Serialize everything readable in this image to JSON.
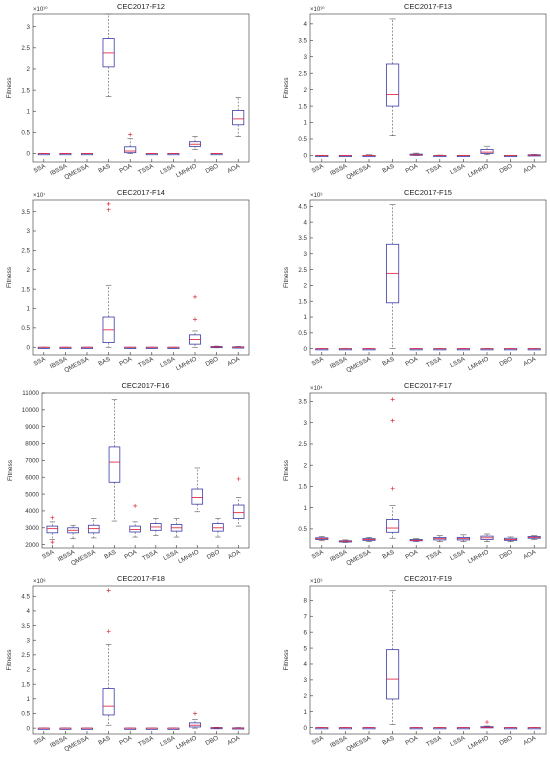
{
  "figure": {
    "ylabel": "Fitness",
    "categories": [
      "SSA",
      "IBSSA",
      "QMESSA",
      "BAS",
      "POA",
      "TSSA",
      "LSSA",
      "LMHHO",
      "DBO",
      "AOA"
    ],
    "colors": {
      "box": "#3a3aa8",
      "median": "#e0304a",
      "whisker": "#555555",
      "outlier": "#e0304a",
      "axis": "#333333"
    }
  },
  "chart_data": [
    {
      "type": "box",
      "title": "CEC2017-F12",
      "exponent": "×10¹⁰",
      "ylabel": "Fitness",
      "ylim": [
        -0.2,
        3.3
      ],
      "yticks": [
        0,
        0.5,
        1,
        1.5,
        2,
        2.5,
        3
      ],
      "ytick_labels": [
        "0",
        "0.5",
        "1",
        "1.5",
        "2",
        "2.5",
        "3"
      ],
      "categories": [
        "SSA",
        "IBSSA",
        "QMESSA",
        "BAS",
        "POA",
        "TSSA",
        "LSSA",
        "LMHHO",
        "DBO",
        "AOA"
      ],
      "boxes": [
        {
          "min": 0,
          "q1": 0,
          "median": 0,
          "q3": 0,
          "max": 0,
          "outliers": []
        },
        {
          "min": 0,
          "q1": 0,
          "median": 0,
          "q3": 0,
          "max": 0,
          "outliers": []
        },
        {
          "min": 0,
          "q1": 0,
          "median": 0,
          "q3": 0,
          "max": 0,
          "outliers": []
        },
        {
          "min": 1.35,
          "q1": 2.05,
          "median": 2.38,
          "q3": 2.72,
          "max": 3.3,
          "outliers": []
        },
        {
          "min": 0,
          "q1": 0.02,
          "median": 0.06,
          "q3": 0.16,
          "max": 0.35,
          "outliers": [
            0.45
          ]
        },
        {
          "min": 0,
          "q1": 0,
          "median": 0,
          "q3": 0,
          "max": 0,
          "outliers": []
        },
        {
          "min": 0,
          "q1": 0,
          "median": 0,
          "q3": 0,
          "max": 0,
          "outliers": []
        },
        {
          "min": 0.1,
          "q1": 0.17,
          "median": 0.22,
          "q3": 0.28,
          "max": 0.4,
          "outliers": []
        },
        {
          "min": 0,
          "q1": 0,
          "median": 0,
          "q3": 0,
          "max": 0,
          "outliers": []
        },
        {
          "min": 0.4,
          "q1": 0.68,
          "median": 0.82,
          "q3": 1.02,
          "max": 1.32,
          "outliers": []
        }
      ]
    },
    {
      "type": "box",
      "title": "CEC2017-F13",
      "exponent": "×10¹⁰",
      "ylabel": "Fitness",
      "ylim": [
        -0.2,
        4.3
      ],
      "yticks": [
        0,
        0.5,
        1,
        1.5,
        2,
        2.5,
        3,
        3.5,
        4
      ],
      "ytick_labels": [
        "0",
        "0.5",
        "1",
        "1.5",
        "2",
        "2.5",
        "3",
        "3.5",
        "4"
      ],
      "categories": [
        "SSA",
        "IBSSA",
        "QMESSA",
        "BAS",
        "POA",
        "TSSA",
        "LSSA",
        "LMHHO",
        "DBO",
        "AOA"
      ],
      "boxes": [
        {
          "min": 0,
          "q1": 0,
          "median": 0,
          "q3": 0,
          "max": 0,
          "outliers": []
        },
        {
          "min": 0,
          "q1": 0,
          "median": 0,
          "q3": 0,
          "max": 0,
          "outliers": []
        },
        {
          "min": 0,
          "q1": 0,
          "median": 0,
          "q3": 0,
          "max": 0.02,
          "outliers": []
        },
        {
          "min": 0.6,
          "q1": 1.5,
          "median": 1.85,
          "q3": 2.78,
          "max": 4.15,
          "outliers": []
        },
        {
          "min": 0,
          "q1": 0.01,
          "median": 0.02,
          "q3": 0.04,
          "max": 0.07,
          "outliers": []
        },
        {
          "min": 0,
          "q1": 0,
          "median": 0,
          "q3": 0,
          "max": 0.01,
          "outliers": []
        },
        {
          "min": 0,
          "q1": 0,
          "median": 0,
          "q3": 0,
          "max": 0,
          "outliers": []
        },
        {
          "min": 0.02,
          "q1": 0.06,
          "median": 0.1,
          "q3": 0.18,
          "max": 0.28,
          "outliers": []
        },
        {
          "min": 0,
          "q1": 0,
          "median": 0,
          "q3": 0,
          "max": 0,
          "outliers": []
        },
        {
          "min": 0,
          "q1": 0,
          "median": 0.01,
          "q3": 0.02,
          "max": 0.03,
          "outliers": []
        }
      ]
    },
    {
      "type": "box",
      "title": "CEC2017-F14",
      "exponent": "×10⁷",
      "ylabel": "Fitness",
      "ylim": [
        -0.2,
        3.8
      ],
      "yticks": [
        0,
        0.5,
        1,
        1.5,
        2,
        2.5,
        3,
        3.5
      ],
      "ytick_labels": [
        "0",
        "0.5",
        "1",
        "1.5",
        "2",
        "2.5",
        "3",
        "3.5"
      ],
      "categories": [
        "SSA",
        "IBSSA",
        "QMESSA",
        "BAS",
        "POA",
        "TSSA",
        "LSSA",
        "LMHHO",
        "DBO",
        "AOA"
      ],
      "boxes": [
        {
          "min": 0,
          "q1": 0,
          "median": 0,
          "q3": 0,
          "max": 0,
          "outliers": []
        },
        {
          "min": 0,
          "q1": 0,
          "median": 0,
          "q3": 0,
          "max": 0,
          "outliers": []
        },
        {
          "min": 0,
          "q1": 0,
          "median": 0,
          "q3": 0,
          "max": 0,
          "outliers": []
        },
        {
          "min": 0,
          "q1": 0.12,
          "median": 0.45,
          "q3": 0.78,
          "max": 1.6,
          "outliers": [
            3.55,
            3.7
          ]
        },
        {
          "min": 0,
          "q1": 0,
          "median": 0,
          "q3": 0,
          "max": 0,
          "outliers": []
        },
        {
          "min": 0,
          "q1": 0,
          "median": 0,
          "q3": 0,
          "max": 0,
          "outliers": []
        },
        {
          "min": 0,
          "q1": 0,
          "median": 0,
          "q3": 0,
          "max": 0,
          "outliers": []
        },
        {
          "min": 0,
          "q1": 0.08,
          "median": 0.2,
          "q3": 0.32,
          "max": 0.42,
          "outliers": [
            0.72,
            1.3
          ]
        },
        {
          "min": 0,
          "q1": 0,
          "median": 0.01,
          "q3": 0.02,
          "max": 0.03,
          "outliers": []
        },
        {
          "min": 0,
          "q1": 0,
          "median": 0,
          "q3": 0.01,
          "max": 0.02,
          "outliers": []
        }
      ]
    },
    {
      "type": "box",
      "title": "CEC2017-F15",
      "exponent": "×10⁹",
      "ylabel": "Fitness",
      "ylim": [
        -0.2,
        4.7
      ],
      "yticks": [
        0,
        0.5,
        1,
        1.5,
        2,
        2.5,
        3,
        3.5,
        4,
        4.5
      ],
      "ytick_labels": [
        "0",
        "0.5",
        "1",
        "1.5",
        "2",
        "2.5",
        "3",
        "3.5",
        "4",
        "4.5"
      ],
      "categories": [
        "SSA",
        "IBSSA",
        "QMESSA",
        "BAS",
        "POA",
        "TSSA",
        "LSSA",
        "LMHHO",
        "DBO",
        "AOA"
      ],
      "boxes": [
        {
          "min": 0,
          "q1": 0,
          "median": 0,
          "q3": 0,
          "max": 0,
          "outliers": []
        },
        {
          "min": 0,
          "q1": 0,
          "median": 0,
          "q3": 0,
          "max": 0,
          "outliers": []
        },
        {
          "min": 0,
          "q1": 0,
          "median": 0,
          "q3": 0,
          "max": 0,
          "outliers": []
        },
        {
          "min": 0,
          "q1": 1.45,
          "median": 2.38,
          "q3": 3.3,
          "max": 4.55,
          "outliers": []
        },
        {
          "min": 0,
          "q1": 0,
          "median": 0,
          "q3": 0,
          "max": 0,
          "outliers": []
        },
        {
          "min": 0,
          "q1": 0,
          "median": 0,
          "q3": 0,
          "max": 0,
          "outliers": []
        },
        {
          "min": 0,
          "q1": 0,
          "median": 0,
          "q3": 0,
          "max": 0,
          "outliers": []
        },
        {
          "min": 0,
          "q1": 0,
          "median": 0,
          "q3": 0,
          "max": 0,
          "outliers": []
        },
        {
          "min": 0,
          "q1": 0,
          "median": 0,
          "q3": 0,
          "max": 0,
          "outliers": []
        },
        {
          "min": 0,
          "q1": 0,
          "median": 0,
          "q3": 0,
          "max": 0,
          "outliers": []
        }
      ]
    },
    {
      "type": "box",
      "title": "CEC2017-F16",
      "exponent": "",
      "ylabel": "Fitness",
      "ylim": [
        1800,
        11000
      ],
      "yticks": [
        2000,
        3000,
        4000,
        5000,
        6000,
        7000,
        8000,
        9000,
        10000,
        11000
      ],
      "ytick_labels": [
        "2000",
        "3000",
        "4000",
        "5000",
        "6000",
        "7000",
        "8000",
        "9000",
        "10000",
        "11000"
      ],
      "categories": [
        "SSA",
        "IBSSA",
        "QMESSA",
        "BAS",
        "POA",
        "TSSA",
        "LSSA",
        "LMHHO",
        "DBO",
        "AOA"
      ],
      "boxes": [
        {
          "min": 2300,
          "q1": 2700,
          "median": 2950,
          "q3": 3100,
          "max": 3350,
          "outliers": [
            2150,
            3600
          ]
        },
        {
          "min": 2350,
          "q1": 2700,
          "median": 2850,
          "q3": 3000,
          "max": 3150,
          "outliers": []
        },
        {
          "min": 2400,
          "q1": 2700,
          "median": 2950,
          "q3": 3150,
          "max": 3550,
          "outliers": []
        },
        {
          "min": 3400,
          "q1": 5700,
          "median": 6900,
          "q3": 7800,
          "max": 10600,
          "outliers": []
        },
        {
          "min": 2450,
          "q1": 2750,
          "median": 2900,
          "q3": 3100,
          "max": 3350,
          "outliers": [
            4300
          ]
        },
        {
          "min": 2550,
          "q1": 2850,
          "median": 3050,
          "q3": 3250,
          "max": 3550,
          "outliers": []
        },
        {
          "min": 2450,
          "q1": 2800,
          "median": 3000,
          "q3": 3200,
          "max": 3550,
          "outliers": []
        },
        {
          "min": 3950,
          "q1": 4400,
          "median": 4800,
          "q3": 5300,
          "max": 6550,
          "outliers": []
        },
        {
          "min": 2450,
          "q1": 2800,
          "median": 3000,
          "q3": 3250,
          "max": 3550,
          "outliers": []
        },
        {
          "min": 3100,
          "q1": 3550,
          "median": 3900,
          "q3": 4350,
          "max": 4800,
          "outliers": [
            5900
          ]
        }
      ]
    },
    {
      "type": "box",
      "title": "CEC2017-F17",
      "exponent": "×10⁴",
      "ylabel": "Fitness",
      "ylim": [
        0.05,
        3.7
      ],
      "yticks": [
        0.5,
        1,
        1.5,
        2,
        2.5,
        3,
        3.5
      ],
      "ytick_labels": [
        "0.5",
        "1",
        "1.5",
        "2",
        "2.5",
        "3",
        "3.5"
      ],
      "categories": [
        "SSA",
        "IBSSA",
        "QMESSA",
        "BAS",
        "POA",
        "TSSA",
        "LSSA",
        "LMHHO",
        "DBO",
        "AOA"
      ],
      "boxes": [
        {
          "min": 0.22,
          "q1": 0.25,
          "median": 0.27,
          "q3": 0.29,
          "max": 0.32,
          "outliers": []
        },
        {
          "min": 0.18,
          "q1": 0.2,
          "median": 0.21,
          "q3": 0.22,
          "max": 0.24,
          "outliers": []
        },
        {
          "min": 0.2,
          "q1": 0.23,
          "median": 0.25,
          "q3": 0.27,
          "max": 0.3,
          "outliers": []
        },
        {
          "min": 0.28,
          "q1": 0.42,
          "median": 0.52,
          "q3": 0.72,
          "max": 1.05,
          "outliers": [
            1.45,
            3.05,
            3.55
          ]
        },
        {
          "min": 0.2,
          "q1": 0.22,
          "median": 0.23,
          "q3": 0.25,
          "max": 0.27,
          "outliers": []
        },
        {
          "min": 0.2,
          "q1": 0.24,
          "median": 0.27,
          "q3": 0.3,
          "max": 0.34,
          "outliers": []
        },
        {
          "min": 0.2,
          "q1": 0.24,
          "median": 0.27,
          "q3": 0.3,
          "max": 0.36,
          "outliers": []
        },
        {
          "min": 0.2,
          "q1": 0.25,
          "median": 0.29,
          "q3": 0.33,
          "max": 0.38,
          "outliers": []
        },
        {
          "min": 0.2,
          "q1": 0.23,
          "median": 0.25,
          "q3": 0.28,
          "max": 0.31,
          "outliers": []
        },
        {
          "min": 0.25,
          "q1": 0.28,
          "median": 0.3,
          "q3": 0.32,
          "max": 0.34,
          "outliers": []
        }
      ]
    },
    {
      "type": "box",
      "title": "CEC2017-F18",
      "exponent": "×10⁸",
      "ylabel": "Fitness",
      "ylim": [
        -0.2,
        4.85
      ],
      "yticks": [
        0,
        0.5,
        1,
        1.5,
        2,
        2.5,
        3,
        3.5,
        4,
        4.5
      ],
      "ytick_labels": [
        "0",
        "0.5",
        "1",
        "1.5",
        "2",
        "2.5",
        "3",
        "3.5",
        "4",
        "4.5"
      ],
      "categories": [
        "SSA",
        "IBSSA",
        "QMESSA",
        "BAS",
        "POA",
        "TSSA",
        "LSSA",
        "LMHHO",
        "DBO",
        "AOA"
      ],
      "boxes": [
        {
          "min": 0,
          "q1": 0,
          "median": 0,
          "q3": 0,
          "max": 0,
          "outliers": []
        },
        {
          "min": 0,
          "q1": 0,
          "median": 0,
          "q3": 0,
          "max": 0,
          "outliers": []
        },
        {
          "min": 0,
          "q1": 0,
          "median": 0,
          "q3": 0,
          "max": 0,
          "outliers": []
        },
        {
          "min": 0.1,
          "q1": 0.45,
          "median": 0.75,
          "q3": 1.35,
          "max": 2.85,
          "outliers": [
            3.3,
            4.7
          ]
        },
        {
          "min": 0,
          "q1": 0,
          "median": 0,
          "q3": 0,
          "max": 0,
          "outliers": []
        },
        {
          "min": 0,
          "q1": 0,
          "median": 0,
          "q3": 0,
          "max": 0,
          "outliers": []
        },
        {
          "min": 0,
          "q1": 0,
          "median": 0,
          "q3": 0,
          "max": 0,
          "outliers": []
        },
        {
          "min": 0,
          "q1": 0.04,
          "median": 0.1,
          "q3": 0.18,
          "max": 0.3,
          "outliers": [
            0.5
          ]
        },
        {
          "min": 0,
          "q1": 0,
          "median": 0.01,
          "q3": 0.02,
          "max": 0.03,
          "outliers": []
        },
        {
          "min": 0,
          "q1": 0,
          "median": 0,
          "q3": 0.01,
          "max": 0.02,
          "outliers": []
        }
      ]
    },
    {
      "type": "box",
      "title": "CEC2017-F19",
      "exponent": "×10⁹",
      "ylabel": "Fitness",
      "ylim": [
        -0.4,
        8.9
      ],
      "yticks": [
        0,
        1,
        2,
        3,
        4,
        5,
        6,
        7,
        8
      ],
      "ytick_labels": [
        "0",
        "1",
        "2",
        "3",
        "4",
        "5",
        "6",
        "7",
        "8"
      ],
      "categories": [
        "SSA",
        "IBSSA",
        "QMESSA",
        "BAS",
        "POA",
        "TSSA",
        "LSSA",
        "LMHHO",
        "DBO",
        "AOA"
      ],
      "boxes": [
        {
          "min": 0,
          "q1": 0,
          "median": 0,
          "q3": 0,
          "max": 0,
          "outliers": []
        },
        {
          "min": 0,
          "q1": 0,
          "median": 0,
          "q3": 0,
          "max": 0,
          "outliers": []
        },
        {
          "min": 0,
          "q1": 0,
          "median": 0,
          "q3": 0,
          "max": 0,
          "outliers": []
        },
        {
          "min": 0.2,
          "q1": 1.8,
          "median": 3.05,
          "q3": 4.9,
          "max": 8.6,
          "outliers": []
        },
        {
          "min": 0,
          "q1": 0,
          "median": 0,
          "q3": 0,
          "max": 0,
          "outliers": []
        },
        {
          "min": 0,
          "q1": 0,
          "median": 0,
          "q3": 0,
          "max": 0,
          "outliers": []
        },
        {
          "min": 0,
          "q1": 0,
          "median": 0,
          "q3": 0,
          "max": 0,
          "outliers": []
        },
        {
          "min": 0,
          "q1": 0,
          "median": 0.02,
          "q3": 0.06,
          "max": 0.1,
          "outliers": [
            0.35
          ]
        },
        {
          "min": 0,
          "q1": 0,
          "median": 0,
          "q3": 0,
          "max": 0,
          "outliers": []
        },
        {
          "min": 0,
          "q1": 0,
          "median": 0,
          "q3": 0,
          "max": 0,
          "outliers": []
        }
      ]
    }
  ]
}
